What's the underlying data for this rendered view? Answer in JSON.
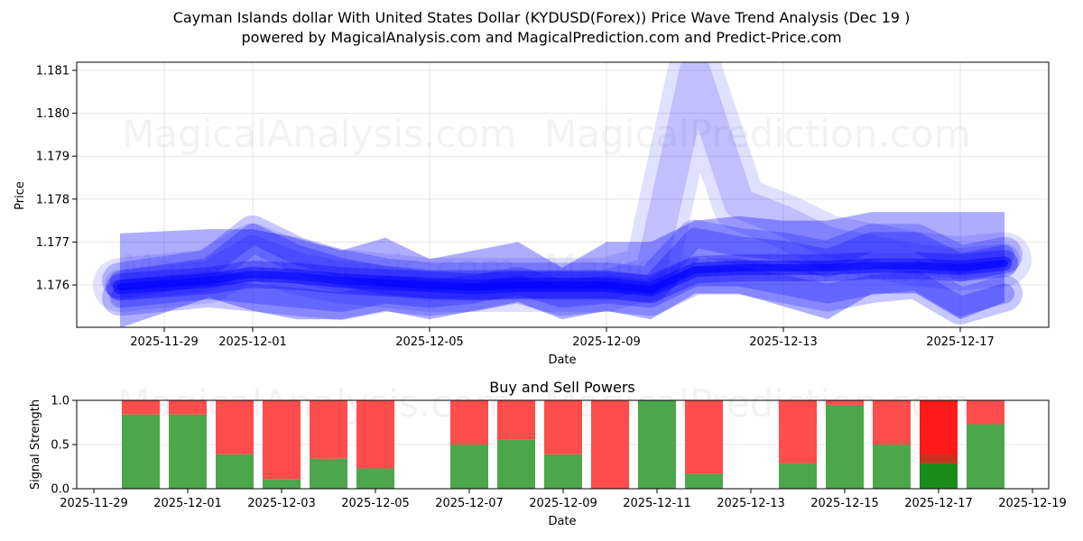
{
  "header": {
    "title": "Cayman Islands dollar With United States Dollar (KYDUSD(Forex)) Price Wave Trend Analysis (Dec 19 )",
    "subtitle": "powered by MagicalAnalysis.com and MagicalPrediction.com and Predict-Price.com"
  },
  "watermarks": [
    "MagicalAnalysis.com",
    "MagicalPrediction.com"
  ],
  "colors": {
    "wave": "#0000ff",
    "buy": "#4ca64c",
    "sell": "#ff4c4c",
    "buy_strong": "#1a8c1a",
    "sell_strong": "#ff1a1a"
  },
  "chart_data": [
    {
      "type": "area",
      "title": "",
      "xlabel": "Date",
      "ylabel": "Price",
      "ylim": [
        1.17505,
        1.18115
      ],
      "yticks": [
        "1.176",
        "1.177",
        "1.178",
        "1.179",
        "1.180",
        "1.181"
      ],
      "xticks": [
        "2025-11-29",
        "2025-12-01",
        "2025-12-05",
        "2025-12-09",
        "2025-12-13",
        "2025-12-17"
      ],
      "grid": true,
      "x": [
        "2025-11-28",
        "2025-11-30",
        "2025-12-01",
        "2025-12-02",
        "2025-12-03",
        "2025-12-04",
        "2025-12-05",
        "2025-12-06",
        "2025-12-07",
        "2025-12-08",
        "2025-12-09",
        "2025-12-10",
        "2025-12-11",
        "2025-12-12",
        "2025-12-13",
        "2025-12-14",
        "2025-12-15",
        "2025-12-16",
        "2025-12-17",
        "2025-12-18"
      ],
      "series": [
        {
          "name": "central wave",
          "values": [
            1.17595,
            1.1761,
            1.17625,
            1.1762,
            1.1761,
            1.17605,
            1.176,
            1.17595,
            1.176,
            1.176,
            1.176,
            1.1759,
            1.17635,
            1.1764,
            1.1764,
            1.1764,
            1.17645,
            1.17645,
            1.1764,
            1.1765
          ]
        },
        {
          "name": "upper wave",
          "values": [
            1.1761,
            1.1764,
            1.1772,
            1.1767,
            1.1764,
            1.1762,
            1.1761,
            1.1761,
            1.1761,
            1.1761,
            1.1761,
            1.176,
            1.1771,
            1.1769,
            1.1768,
            1.1766,
            1.177,
            1.177,
            1.1765,
            1.1767
          ]
        },
        {
          "name": "lower wave",
          "values": [
            1.1757,
            1.1759,
            1.1758,
            1.1757,
            1.1756,
            1.1758,
            1.1757,
            1.1758,
            1.176,
            1.1757,
            1.1758,
            1.1757,
            1.1762,
            1.1762,
            1.176,
            1.1758,
            1.176,
            1.1761,
            1.1755,
            1.1758
          ]
        },
        {
          "name": "spike wave",
          "values": [
            1.176,
            1.1762,
            1.1768,
            1.1764,
            1.1762,
            1.1761,
            1.176,
            1.176,
            1.176,
            1.176,
            1.176,
            1.1763,
            1.181,
            1.1779,
            1.1775,
            1.177,
            1.1768,
            1.1766,
            1.1765,
            1.1766
          ]
        },
        {
          "name": "band upper",
          "values": [
            1.1772,
            1.1773,
            1.1773,
            1.1771,
            1.1768,
            1.1771,
            1.1766,
            1.1768,
            1.177,
            1.1764,
            1.177,
            1.177,
            1.1775,
            1.1776,
            1.1775,
            1.1775,
            1.1777,
            1.1777,
            1.1777,
            1.1777
          ]
        },
        {
          "name": "band lower",
          "values": [
            1.175,
            1.1757,
            1.1754,
            1.1752,
            1.1752,
            1.1754,
            1.1752,
            1.1754,
            1.1756,
            1.1752,
            1.1754,
            1.1752,
            1.1758,
            1.1758,
            1.1755,
            1.1752,
            1.1758,
            1.1758,
            1.1752,
            1.1756
          ]
        }
      ]
    },
    {
      "type": "bar",
      "title": "Buy and Sell Powers",
      "xlabel": "Date",
      "ylabel": "Signal Strength",
      "ylim": [
        0,
        1.0
      ],
      "yticks": [
        "0.0",
        "0.5",
        "1.0"
      ],
      "xticks": [
        "2025-11-29",
        "2025-12-01",
        "2025-12-03",
        "2025-12-05",
        "2025-12-07",
        "2025-12-09",
        "2025-12-11",
        "2025-12-13",
        "2025-12-15",
        "2025-12-17",
        "2025-12-19"
      ],
      "grid": true,
      "categories": [
        "2025-11-30",
        "2025-12-01",
        "2025-12-02",
        "2025-12-03",
        "2025-12-04",
        "2025-12-05",
        "2025-12-07",
        "2025-12-08",
        "2025-12-09",
        "2025-12-10",
        "2025-12-11",
        "2025-12-12",
        "2025-12-14",
        "2025-12-15",
        "2025-12-16",
        "2025-12-17",
        "2025-12-18"
      ],
      "series": [
        {
          "name": "Buy",
          "values": [
            0.84,
            0.84,
            0.39,
            0.11,
            0.34,
            0.23,
            0.5,
            0.56,
            0.39,
            0.0,
            1.0,
            0.17,
            0.29,
            0.95,
            0.5,
            0.29,
            0.73
          ]
        },
        {
          "name": "Sell",
          "values": [
            0.16,
            0.16,
            0.61,
            0.89,
            0.66,
            0.77,
            0.5,
            0.44,
            0.61,
            1.0,
            0.0,
            0.83,
            0.71,
            0.05,
            0.5,
            0.71,
            0.27
          ]
        }
      ],
      "highlight": {
        "date": "2025-12-17",
        "buy": 0.29,
        "sell": 0.71,
        "overlap_band": [
          0.29,
          0.39
        ]
      }
    }
  ]
}
